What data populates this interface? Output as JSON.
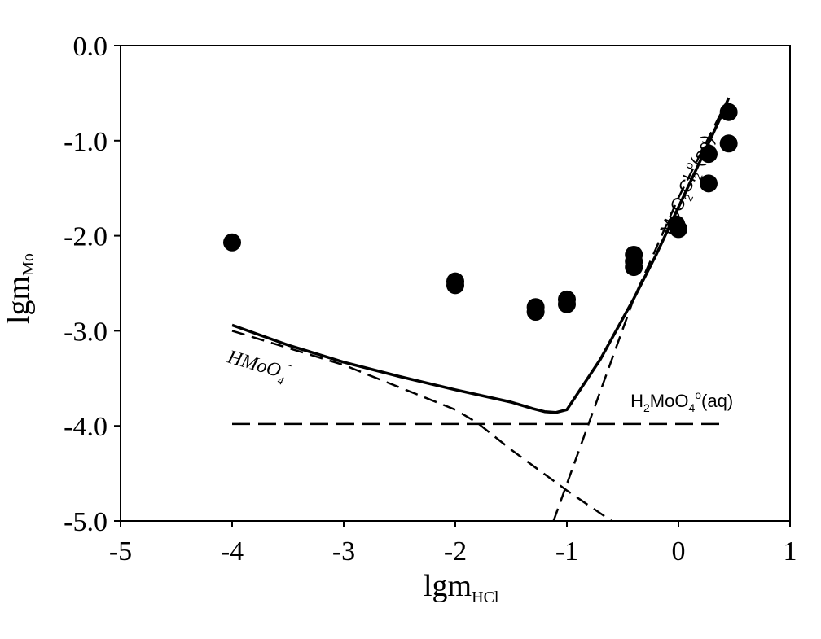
{
  "chart_data": {
    "type": "scatter",
    "title": "",
    "xlabel": {
      "main": "lgm",
      "sub": "HCl"
    },
    "ylabel": {
      "main": "lgm",
      "sub": "Mo"
    },
    "xlim": [
      -5,
      1
    ],
    "ylim": [
      -5,
      0
    ],
    "xticks": [
      -5,
      -4,
      -3,
      -2,
      -1,
      0,
      1
    ],
    "yticks": [
      0,
      -1,
      -2,
      -3,
      -4,
      -5
    ],
    "xtick_labels": [
      "-5",
      "-4",
      "-3",
      "-2",
      "-1",
      "0",
      "1"
    ],
    "ytick_labels": [
      "0.0",
      "-1.0",
      "-2.0",
      "-3.0",
      "-4.0",
      "-5.0"
    ],
    "grid": false,
    "points": [
      [
        -4.0,
        -2.07
      ],
      [
        -2.0,
        -2.48
      ],
      [
        -2.0,
        -2.52
      ],
      [
        -1.28,
        -2.75
      ],
      [
        -1.28,
        -2.8
      ],
      [
        -1.0,
        -2.67
      ],
      [
        -1.0,
        -2.72
      ],
      [
        -0.4,
        -2.2
      ],
      [
        -0.4,
        -2.27
      ],
      [
        -0.4,
        -2.33
      ],
      [
        -0.02,
        -1.88
      ],
      [
        0.0,
        -1.93
      ],
      [
        0.27,
        -1.14
      ],
      [
        0.27,
        -1.45
      ],
      [
        0.45,
        -0.7
      ],
      [
        0.45,
        -1.03
      ]
    ],
    "lines": [
      {
        "style": "solid",
        "points": [
          [
            -4.0,
            -2.94
          ],
          [
            -3.5,
            -3.15
          ],
          [
            -3.0,
            -3.33
          ],
          [
            -2.5,
            -3.48
          ],
          [
            -2.0,
            -3.62
          ],
          [
            -1.5,
            -3.75
          ],
          [
            -1.3,
            -3.82
          ],
          [
            -1.2,
            -3.85
          ],
          [
            -1.1,
            -3.86
          ],
          [
            -1.0,
            -3.83
          ],
          [
            -0.7,
            -3.3
          ],
          [
            -0.4,
            -2.66
          ],
          [
            -0.2,
            -2.2
          ],
          [
            0.0,
            -1.7
          ],
          [
            0.2,
            -1.2
          ],
          [
            0.4,
            -0.7
          ],
          [
            0.45,
            -0.55
          ]
        ]
      },
      {
        "style": "dashed",
        "points": [
          [
            -4.0,
            -3.0
          ],
          [
            -3.0,
            -3.36
          ],
          [
            -2.0,
            -3.83
          ],
          [
            -1.8,
            -3.97
          ],
          [
            -1.5,
            -4.25
          ],
          [
            -1.0,
            -4.68
          ],
          [
            -0.6,
            -5.0
          ]
        ]
      },
      {
        "style": "dashed",
        "points": [
          [
            -4.0,
            -3.98
          ],
          [
            0.4,
            -3.98
          ]
        ]
      },
      {
        "style": "dashed",
        "points": [
          [
            -1.12,
            -5.0
          ],
          [
            -0.4,
            -2.66
          ],
          [
            0.0,
            -1.6
          ],
          [
            0.45,
            -0.55
          ]
        ]
      }
    ],
    "annotations": [
      {
        "base": "HMoO",
        "sub": "4",
        "sup": "-",
        "x": -4.05,
        "y": -3.33,
        "rotation": 16,
        "style": "serif-italic"
      },
      {
        "base": "H",
        "sub1": "2",
        "mid": "MoO",
        "sub2": "4",
        "sup": "o",
        "tail": "(aq)",
        "x": -0.43,
        "y": -3.8,
        "rotation": 0,
        "style": "sans"
      },
      {
        "base": "MoO",
        "sub1": "2",
        "mid": "Cl",
        "sub2": "2",
        "sup": "o",
        "tail": "(aq)",
        "x": -0.07,
        "y": -2.0,
        "rotation": -66,
        "style": "sans"
      }
    ]
  }
}
